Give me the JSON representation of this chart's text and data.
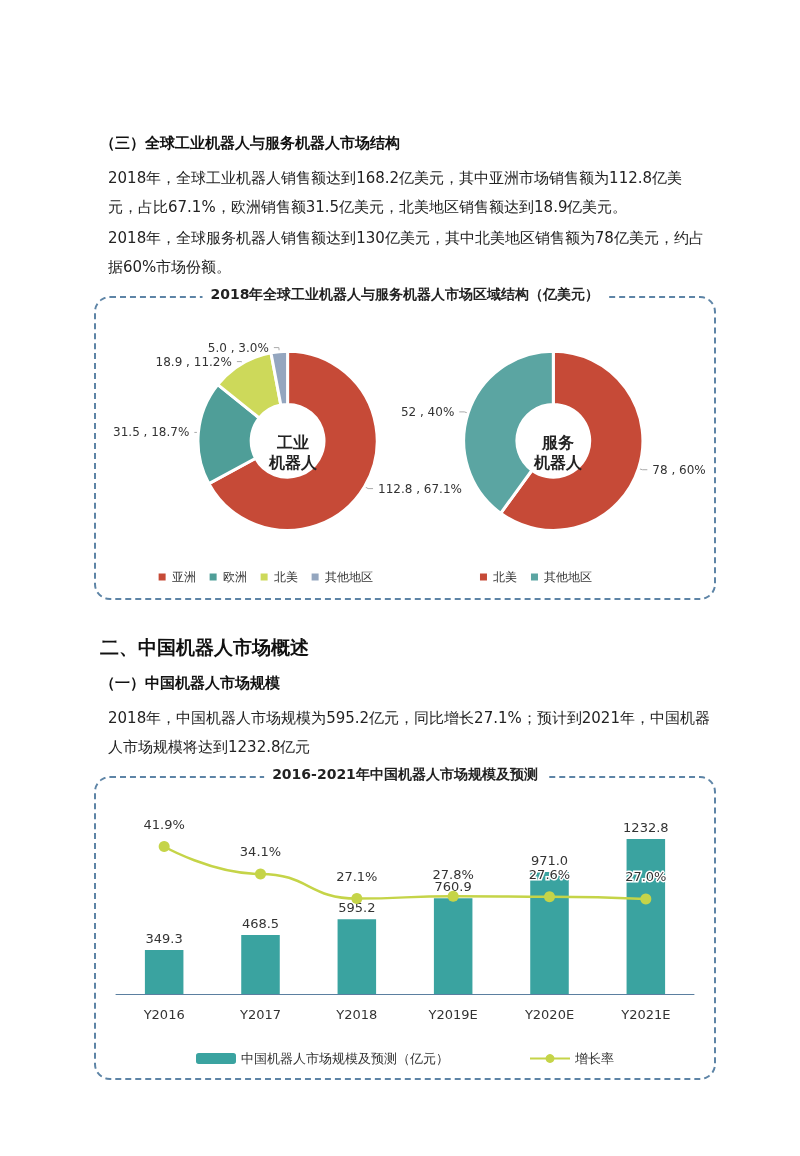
{
  "chart_data": [
    {
      "type": "donut",
      "title": "2018年全球工业机器人与服务机器人市场区域结构（亿美元）",
      "subtitle": "工业机器人",
      "annotations": [
        "（三）全球工业机器人与服务机器人市场结构",
        "2018年，全球工业机器人销售额达到168.2亿美元，其中亚洲市场销售额为112.8亿美元，占比67.1%，欧洲销售额31.5亿美元，北美地区销售额达到18.9亿美元。",
        "2018年，全球服务机器人销售额达到130亿美元，其中北美地区销售额为78亿美元，约占据60%市场份额。"
      ],
      "categories": [
        "亚洲",
        "欧洲",
        "北美",
        "其他地区"
      ],
      "values": [
        112.8,
        31.5,
        18.9,
        5.0
      ],
      "value_labels": [
        "112.8 , 67.1%",
        "31.5 , 18.7%",
        "18.9 , 11.2%",
        "5.0 , 3.0%"
      ],
      "colors": [
        "#c64a37",
        "#4f9e98",
        "#cdd95a",
        "#94a6bf"
      ],
      "legend": "bottom"
    },
    {
      "type": "donut",
      "subtitle": "服务机器人",
      "categories": [
        "北美",
        "其他地区"
      ],
      "values": [
        78,
        52
      ],
      "value_labels": [
        "78 , 60%",
        "52 , 40%"
      ],
      "colors": [
        "#c64a37",
        "#5ba5a2"
      ],
      "legend": "bottom"
    },
    {
      "type": "bar",
      "title": "2016-2021年中国机器人市场规模及预测",
      "annotations": [
        "二、中国机器人市场概述",
        "（一）中国机器人市场规模",
        "2018年，中国机器人市场规模为595.2亿元，同比增长27.1%；预计到2021年，中国机器人市场规模将达到1232.8亿元"
      ],
      "categories": [
        "Y2016",
        "Y2017",
        "Y2018",
        "Y2019E",
        "Y2020E",
        "Y2021E"
      ],
      "series": [
        {
          "name": "中国机器人市场规模及预测（亿元）",
          "color": "#3aa3a0",
          "values": [
            349.3,
            468.5,
            595.2,
            760.9,
            971.0,
            1232.8
          ],
          "value_labels": [
            "349.3",
            "468.5",
            "595.2",
            "760.9",
            "971.0",
            "1232.8"
          ]
        },
        {
          "name": "增长率",
          "type": "line",
          "axis": "y2",
          "color": "#c5d448",
          "values": [
            41.9,
            34.1,
            27.1,
            27.8,
            27.6,
            27.0
          ],
          "value_labels": [
            "41.9%",
            "34.1%",
            "27.1%",
            "27.8%",
            "27.6%",
            "27.0%"
          ]
        }
      ],
      "legend": "bottom",
      "marker": "circle"
    }
  ]
}
